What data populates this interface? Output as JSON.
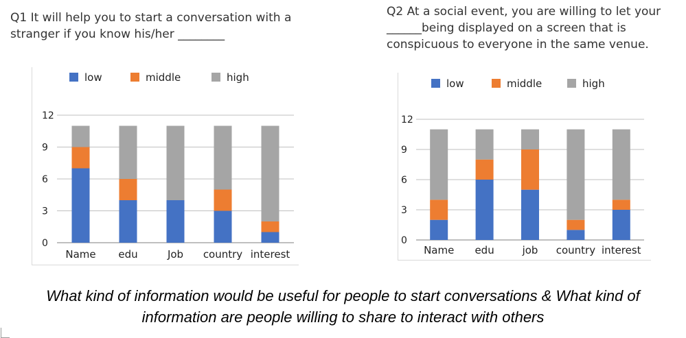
{
  "questions": {
    "q1": "Q1 It will help you to start a conversation with a stranger if you know his/her ________",
    "q2": "Q2 At a social event, you are willing to let your ______being displayed on a screen that is conspicuous to everyone in the same venue."
  },
  "caption": {
    "line1": "What kind of information would be useful for people to start conversations & What kind of",
    "line2": "information are people willing to share to interact with others"
  },
  "colors": {
    "low": "#4472c4",
    "middle": "#ed7d31",
    "high": "#a5a5a5"
  },
  "chart_data": [
    {
      "type": "bar",
      "stacked": true,
      "categories": [
        "Name",
        "edu",
        "Job",
        "country",
        "interest"
      ],
      "series": [
        {
          "name": "low",
          "values": [
            7,
            4,
            4,
            3,
            1
          ]
        },
        {
          "name": "middle",
          "values": [
            2,
            2,
            0,
            2,
            1
          ]
        },
        {
          "name": "high",
          "values": [
            2,
            5,
            7,
            6,
            9
          ]
        }
      ],
      "ylim": [
        0,
        12
      ],
      "yticks": [
        0,
        3,
        6,
        9,
        12
      ],
      "grid": true,
      "legend": "top"
    },
    {
      "type": "bar",
      "stacked": true,
      "categories": [
        "Name",
        "edu",
        "job",
        "country",
        "interest"
      ],
      "series": [
        {
          "name": "low",
          "values": [
            2,
            6,
            5,
            1,
            3
          ]
        },
        {
          "name": "middle",
          "values": [
            2,
            2,
            4,
            1,
            1
          ]
        },
        {
          "name": "high",
          "values": [
            7,
            3,
            2,
            9,
            7
          ]
        }
      ],
      "ylim": [
        0,
        12
      ],
      "yticks": [
        0,
        3,
        6,
        9,
        12
      ],
      "grid": true,
      "legend": "top"
    }
  ]
}
